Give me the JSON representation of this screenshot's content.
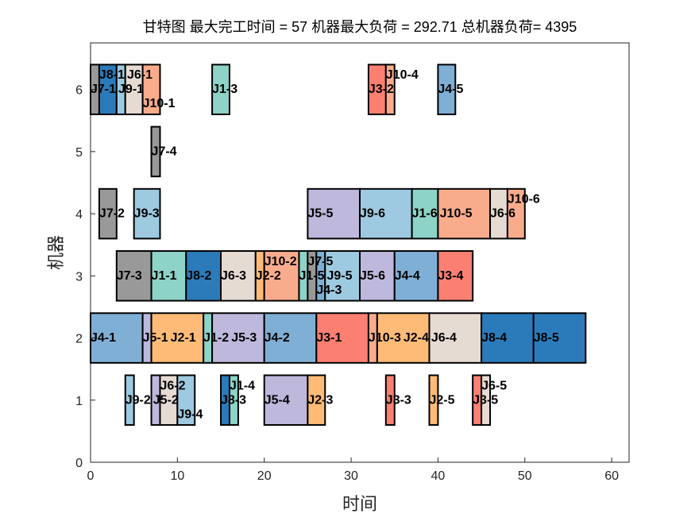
{
  "chart_data": {
    "type": "gantt",
    "title": "甘特图 最大完工时间 = 57 机器最大负荷 = 292.71 总机器负荷= 4395",
    "xlabel": "时间",
    "ylabel": "机器",
    "xlim": [
      0,
      62
    ],
    "ylim": [
      0,
      6.75
    ],
    "xticks": [
      0,
      10,
      20,
      30,
      40,
      50,
      60
    ],
    "yticks": [
      0,
      1,
      2,
      3,
      4,
      5,
      6
    ],
    "grid": false,
    "job_colors": {
      "J1": "#8dd3c7",
      "J2": "#fdbb77",
      "J3": "#fb8072",
      "J4": "#7fafd5",
      "J5": "#bdb8dc",
      "J6": "#e6dbd3",
      "J7": "#999999",
      "J8": "#2b7bba",
      "J9": "#9ecae1",
      "J10": "#f9ac8c"
    },
    "tasks": [
      {
        "machine": 6,
        "job": "J7",
        "label": "J7-1",
        "start": 0,
        "end": 1
      },
      {
        "machine": 6,
        "job": "J8",
        "label": "J8-1",
        "start": 1,
        "end": 3
      },
      {
        "machine": 6,
        "job": "J9",
        "label": "J9-1",
        "start": 3,
        "end": 4
      },
      {
        "machine": 6,
        "job": "J6",
        "label": "J6-1",
        "start": 4,
        "end": 6
      },
      {
        "machine": 6,
        "job": "J10",
        "label": "J10-1",
        "start": 6,
        "end": 8
      },
      {
        "machine": 6,
        "job": "J1",
        "label": "J1-3",
        "start": 14,
        "end": 16
      },
      {
        "machine": 6,
        "job": "J3",
        "label": "J3-2",
        "start": 32,
        "end": 34
      },
      {
        "machine": 6,
        "job": "J10",
        "label": "J10-4",
        "start": 34,
        "end": 35
      },
      {
        "machine": 6,
        "job": "J4",
        "label": "J4-5",
        "start": 40,
        "end": 42
      },
      {
        "machine": 5,
        "job": "J7",
        "label": "J7-4",
        "start": 7,
        "end": 8
      },
      {
        "machine": 4,
        "job": "J7",
        "label": "J7-2",
        "start": 1,
        "end": 3
      },
      {
        "machine": 4,
        "job": "J9",
        "label": "J9-3",
        "start": 5,
        "end": 8
      },
      {
        "machine": 4,
        "job": "J5",
        "label": "J5-5",
        "start": 25,
        "end": 31
      },
      {
        "machine": 4,
        "job": "J9",
        "label": "J9-6",
        "start": 31,
        "end": 37
      },
      {
        "machine": 4,
        "job": "J1",
        "label": "J1-6",
        "start": 37,
        "end": 40
      },
      {
        "machine": 4,
        "job": "J10",
        "label": "J10-5",
        "start": 40,
        "end": 46
      },
      {
        "machine": 4,
        "job": "J6",
        "label": "J6-6",
        "start": 46,
        "end": 48
      },
      {
        "machine": 4,
        "job": "J10",
        "label": "J10-6",
        "start": 48,
        "end": 50
      },
      {
        "machine": 3,
        "job": "J7",
        "label": "J7-3",
        "start": 3,
        "end": 7
      },
      {
        "machine": 3,
        "job": "J1",
        "label": "J1-1",
        "start": 7,
        "end": 11
      },
      {
        "machine": 3,
        "job": "J8",
        "label": "J8-2",
        "start": 11,
        "end": 15
      },
      {
        "machine": 3,
        "job": "J6",
        "label": "J6-3",
        "start": 15,
        "end": 19
      },
      {
        "machine": 3,
        "job": "J2",
        "label": "J2-2",
        "start": 19,
        "end": 20
      },
      {
        "machine": 3,
        "job": "J10",
        "label": "J10-2",
        "start": 20,
        "end": 24
      },
      {
        "machine": 3,
        "job": "J1",
        "label": "J1-5",
        "start": 24,
        "end": 25
      },
      {
        "machine": 3,
        "job": "J7",
        "label": "J7-5",
        "start": 25,
        "end": 26
      },
      {
        "machine": 3,
        "job": "J4",
        "label": "J4-3",
        "start": 26,
        "end": 27
      },
      {
        "machine": 3,
        "job": "J9",
        "label": "J9-5",
        "start": 27,
        "end": 31
      },
      {
        "machine": 3,
        "job": "J5",
        "label": "J5-6",
        "start": 31,
        "end": 35
      },
      {
        "machine": 3,
        "job": "J4",
        "label": "J4-4",
        "start": 35,
        "end": 40
      },
      {
        "machine": 3,
        "job": "J3",
        "label": "J3-4",
        "start": 40,
        "end": 44
      },
      {
        "machine": 2,
        "job": "J4",
        "label": "J4-1",
        "start": 0,
        "end": 6
      },
      {
        "machine": 2,
        "job": "J5",
        "label": "J5-1",
        "start": 6,
        "end": 7
      },
      {
        "machine": 2,
        "job": "J2",
        "label": "J2-1",
        "start": 7,
        "end": 13
      },
      {
        "machine": 2,
        "job": "J1",
        "label": "J1-2",
        "start": 13,
        "end": 14
      },
      {
        "machine": 2,
        "job": "J5",
        "label": "J5-3",
        "start": 14,
        "end": 20
      },
      {
        "machine": 2,
        "job": "J4",
        "label": "J4-2",
        "start": 20,
        "end": 26
      },
      {
        "machine": 2,
        "job": "J3",
        "label": "J3-1",
        "start": 26,
        "end": 32
      },
      {
        "machine": 2,
        "job": "J10",
        "label": "J10-3",
        "start": 32,
        "end": 33
      },
      {
        "machine": 2,
        "job": "J2",
        "label": "J2-4",
        "start": 33,
        "end": 39
      },
      {
        "machine": 2,
        "job": "J6",
        "label": "J6-4",
        "start": 39,
        "end": 45
      },
      {
        "machine": 2,
        "job": "J8",
        "label": "J8-4",
        "start": 45,
        "end": 51
      },
      {
        "machine": 2,
        "job": "J8",
        "label": "J8-5",
        "start": 51,
        "end": 57
      },
      {
        "machine": 1,
        "job": "J9",
        "label": "J9-2",
        "start": 4,
        "end": 5
      },
      {
        "machine": 1,
        "job": "J5",
        "label": "J5-2",
        "start": 7,
        "end": 8
      },
      {
        "machine": 1,
        "job": "J6",
        "label": "J6-2",
        "start": 8,
        "end": 10
      },
      {
        "machine": 1,
        "job": "J9",
        "label": "J9-4",
        "start": 10,
        "end": 12
      },
      {
        "machine": 1,
        "job": "J8",
        "label": "J8-3",
        "start": 15,
        "end": 16
      },
      {
        "machine": 1,
        "job": "J1",
        "label": "J1-4",
        "start": 16,
        "end": 17
      },
      {
        "machine": 1,
        "job": "J5",
        "label": "J5-4",
        "start": 20,
        "end": 25
      },
      {
        "machine": 1,
        "job": "J2",
        "label": "J2-3",
        "start": 25,
        "end": 27
      },
      {
        "machine": 1,
        "job": "J3",
        "label": "J3-3",
        "start": 34,
        "end": 35
      },
      {
        "machine": 1,
        "job": "J2",
        "label": "J2-5",
        "start": 39,
        "end": 40
      },
      {
        "machine": 1,
        "job": "J3",
        "label": "J3-5",
        "start": 44,
        "end": 45
      },
      {
        "machine": 1,
        "job": "J6",
        "label": "J6-5",
        "start": 45,
        "end": 46
      }
    ]
  }
}
